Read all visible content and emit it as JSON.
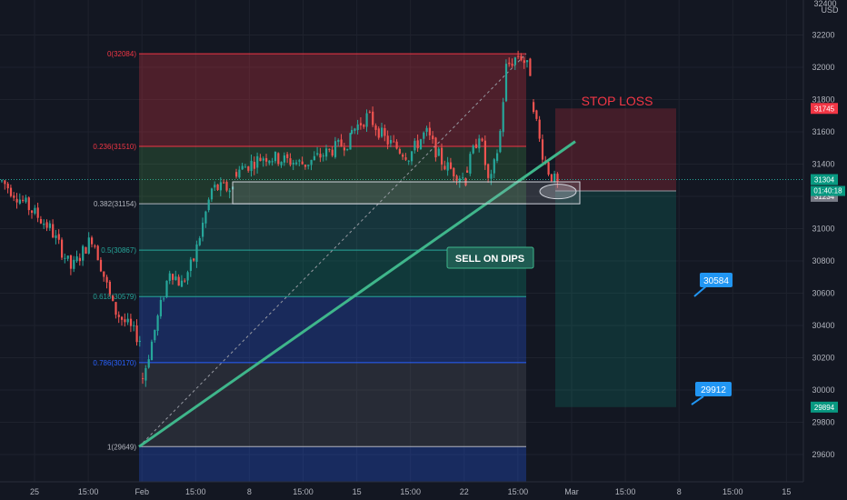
{
  "colors": {
    "background": "#131722",
    "grid": "#1e222d",
    "axis_text": "#b2b5be",
    "candle_up": "#26a69a",
    "candle_down": "#ef5350",
    "fib_red": "#f23645",
    "fib_teal": "#26a69a",
    "fib_blue": "#2962ff",
    "trendline": "#3fb68b",
    "stop_zone": "#f23645",
    "target_zone": "#089981",
    "callout": "#2196f3"
  },
  "price_axis": {
    "currency": "USD",
    "ticks": [
      29600,
      29800,
      30000,
      30200,
      30400,
      30600,
      30800,
      31000,
      31200,
      31400,
      31600,
      31800,
      32000,
      32200
    ],
    "top_label": "32400"
  },
  "time_axis": {
    "ticks": [
      {
        "label": "25",
        "bar": -1
      },
      {
        "label": "15:00",
        "bar": 0
      },
      {
        "label": "Feb",
        "bar": 1
      },
      {
        "label": "15:00",
        "bar": 2
      },
      {
        "label": "8",
        "bar": 3
      },
      {
        "label": "15:00",
        "bar": 4
      },
      {
        "label": "15",
        "bar": 5
      },
      {
        "label": "15:00",
        "bar": 6
      },
      {
        "label": "22",
        "bar": 7
      },
      {
        "label": "15:00",
        "bar": 8
      },
      {
        "label": "Mar",
        "bar": 9
      },
      {
        "label": "15:00",
        "bar": 10
      },
      {
        "label": "8",
        "bar": 11
      },
      {
        "label": "15:00",
        "bar": 12
      },
      {
        "label": "15",
        "bar": 13
      }
    ]
  },
  "price_tags": {
    "stop": "31745",
    "last": "31304",
    "countdown": "01:40:18",
    "entry": "31234",
    "target": "29894"
  },
  "fibonacci": {
    "high": 32084,
    "low": 29649,
    "levels": [
      {
        "label": "0(32084)",
        "price": 32084,
        "color": "#f23645"
      },
      {
        "label": "0.236(31510)",
        "price": 31510,
        "color": "#f23645"
      },
      {
        "label": "0.382(31154)",
        "price": 31154,
        "color": "#b2b5be"
      },
      {
        "label": "0.5(30867)",
        "price": 30867,
        "color": "#26a69a"
      },
      {
        "label": "0.618(30579)",
        "price": 30579,
        "color": "#26a69a"
      },
      {
        "label": "0.786(30170)",
        "price": 30170,
        "color": "#2962ff"
      },
      {
        "label": "1(29649)",
        "price": 29649,
        "color": "#b2b5be"
      }
    ]
  },
  "annotations": {
    "stop_loss": "STOP LOSS",
    "sell_on_dips": "SELL ON DIPS",
    "callout_1": "30584",
    "callout_2": "29912"
  },
  "chart_data": {
    "type": "candlestick",
    "title": "",
    "xlabel": "",
    "ylabel": "",
    "currency": "USD",
    "ylim": [
      29400,
      32400
    ],
    "grid": true,
    "series": [
      {
        "segment": 1,
        "points": [
          [
            0,
            31300
          ],
          [
            0.35,
            31000
          ],
          [
            0.5,
            30750
          ],
          [
            0.65,
            30950
          ],
          [
            0.8,
            30500
          ],
          [
            1,
            30300
          ]
        ]
      },
      {
        "segment": 2,
        "points": [
          [
            0,
            30050
          ],
          [
            0.15,
            30400
          ],
          [
            0.3,
            30750
          ],
          [
            0.42,
            30650
          ],
          [
            0.55,
            30800
          ],
          [
            0.75,
            31250
          ],
          [
            1,
            31250
          ]
        ]
      },
      {
        "segment": 3,
        "points": [
          [
            0,
            31350
          ],
          [
            0.25,
            31450
          ],
          [
            0.6,
            31400
          ],
          [
            1,
            31550
          ]
        ]
      },
      {
        "segment": 4,
        "points": [
          [
            0,
            31600
          ],
          [
            0.15,
            31700
          ],
          [
            0.3,
            31550
          ],
          [
            0.5,
            31450
          ],
          [
            0.65,
            31600
          ],
          [
            0.8,
            31400
          ],
          [
            1,
            31300
          ]
        ]
      },
      {
        "segment": 5,
        "points": [
          [
            0,
            31350
          ],
          [
            0.2,
            31600
          ],
          [
            0.35,
            31250
          ],
          [
            0.5,
            31550
          ],
          [
            0.6,
            32000
          ],
          [
            0.8,
            32084
          ],
          [
            1,
            31950
          ]
        ]
      },
      {
        "segment": 6,
        "points": [
          [
            0,
            31800
          ],
          [
            0.3,
            31500
          ],
          [
            0.6,
            31350
          ],
          [
            1,
            31250
          ]
        ]
      }
    ],
    "fib_retracement": {
      "from": 29649,
      "to": 32084
    },
    "trade_setup": {
      "entry": 31234,
      "stop": 31745,
      "target": 29894
    },
    "resistance_zone": [
      31154,
      31290
    ]
  }
}
